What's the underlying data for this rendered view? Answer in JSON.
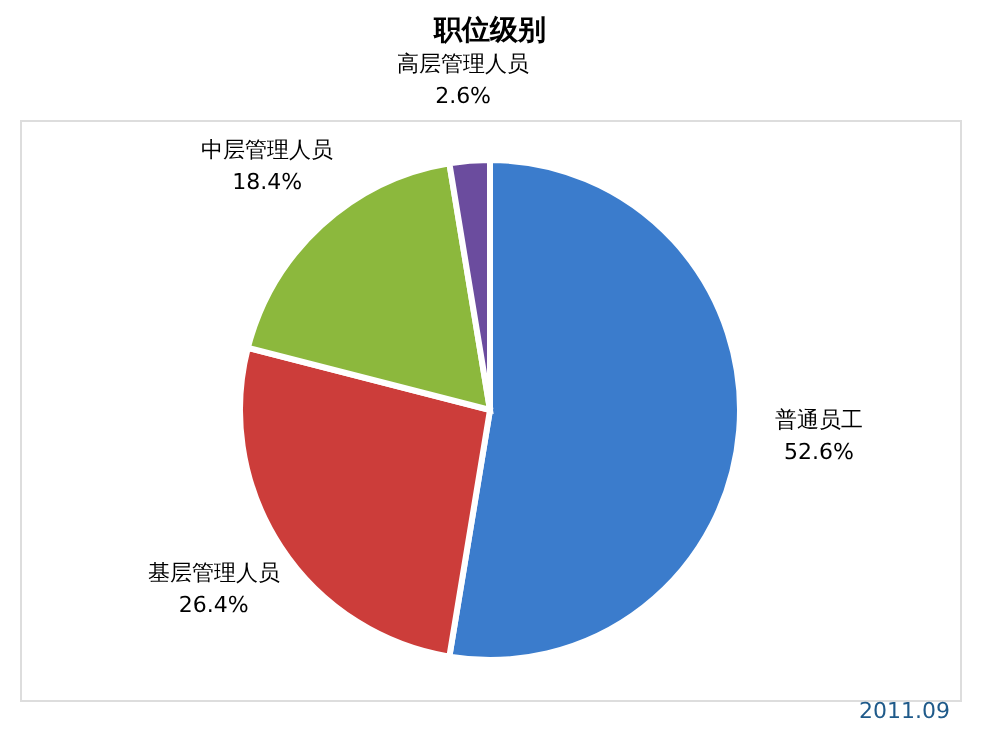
{
  "chart_data": {
    "type": "pie",
    "title": "职位级别",
    "categories": [
      "普通员工",
      "基层管理人员",
      "中层管理人员",
      "高层管理人员"
    ],
    "values": [
      52.6,
      26.4,
      18.4,
      2.6
    ],
    "value_labels": [
      "52.6%",
      "26.4%",
      "18.4%",
      "2.6%"
    ],
    "colors": [
      "#3b7ccc",
      "#cc3d3a",
      "#8cb83d",
      "#6b4c9e"
    ],
    "annotations": [
      "2011.09"
    ]
  }
}
